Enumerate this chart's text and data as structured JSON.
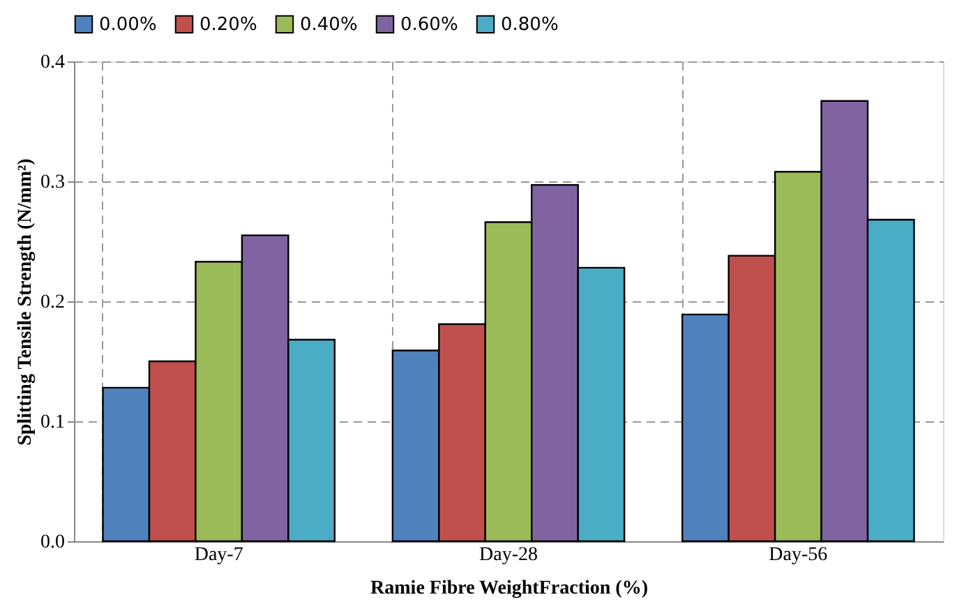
{
  "chart_data": {
    "type": "bar",
    "xlabel": "Ramie Fibre WeightFraction (%)",
    "ylabel": "Splitting Tensile Strength (N/mm²)",
    "categories": [
      "Day-7",
      "Day-28",
      "Day-56"
    ],
    "series": [
      {
        "name": "0.00%",
        "color": "#4f81bd",
        "values": [
          0.128,
          0.159,
          0.189
        ]
      },
      {
        "name": "0.20%",
        "color": "#c0504d",
        "values": [
          0.15,
          0.181,
          0.238
        ]
      },
      {
        "name": "0.40%",
        "color": "#9bbb59",
        "values": [
          0.233,
          0.266,
          0.308
        ]
      },
      {
        "name": "0.60%",
        "color": "#8064a2",
        "values": [
          0.255,
          0.297,
          0.367
        ]
      },
      {
        "name": "0.80%",
        "color": "#4bacc6",
        "values": [
          0.168,
          0.228,
          0.268
        ]
      }
    ],
    "ylim": [
      0,
      0.4
    ],
    "yticks": [
      {
        "value": 0,
        "label": "0.0"
      },
      {
        "value": 0.1,
        "label": "0.1"
      },
      {
        "value": 0.2,
        "label": "0.2"
      },
      {
        "value": 0.3,
        "label": "0.3"
      },
      {
        "value": 0.4,
        "label": "0.4"
      }
    ],
    "grid": true,
    "legend": "top"
  }
}
